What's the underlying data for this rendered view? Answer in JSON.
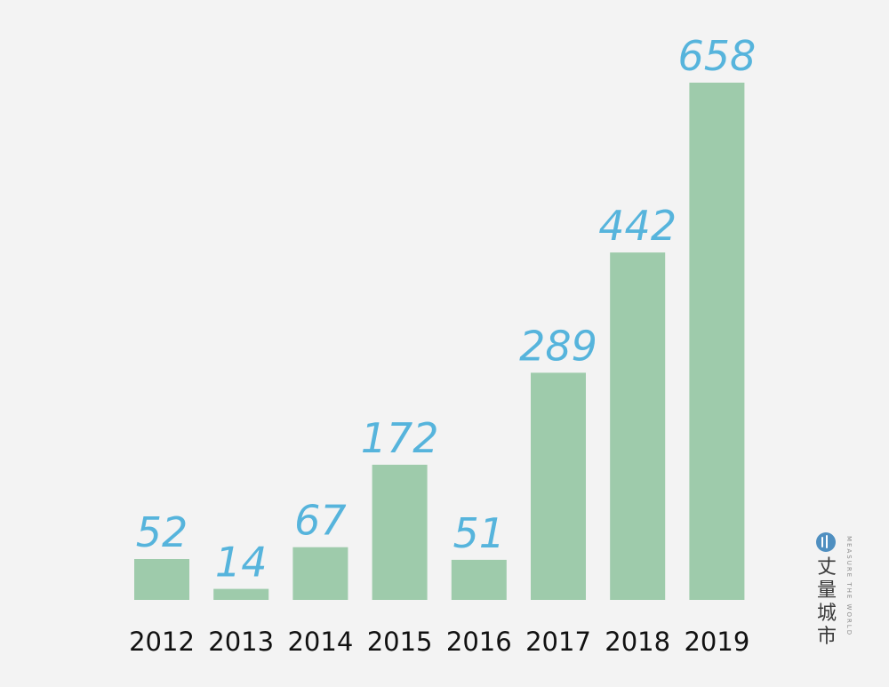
{
  "chart_data": {
    "type": "bar",
    "categories": [
      "2012",
      "2013",
      "2014",
      "2015",
      "2016",
      "2017",
      "2018",
      "2019"
    ],
    "values": [
      52,
      14,
      67,
      172,
      51,
      289,
      442,
      658
    ],
    "title": "",
    "xlabel": "",
    "ylabel": "",
    "ylim": [
      0,
      658
    ],
    "grid": false,
    "legend": "none",
    "colors": {
      "bar": "#9ecbab",
      "value_label": "#56b4dc",
      "tick_label": "#111111",
      "background": "#f3f3f3"
    }
  },
  "watermark": {
    "name_cn": "丈量城市",
    "name_en": "MEASURE THE WORLD",
    "logo_icon": "measure-logo-icon"
  }
}
